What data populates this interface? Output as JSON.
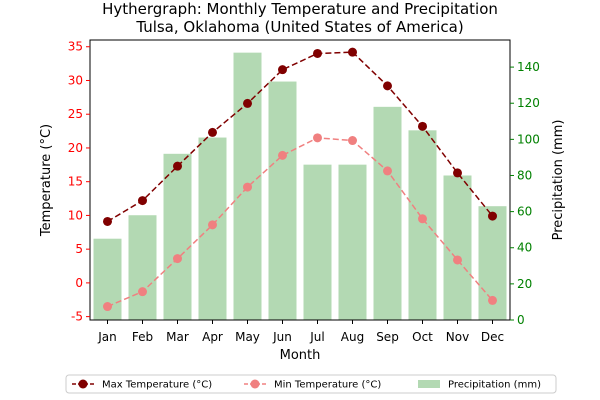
{
  "chart_data": {
    "type": "bar+line",
    "title": "Hythergraph: Monthly Temperature and Precipitation",
    "subtitle": "Tulsa, Oklahoma (United States of America)",
    "xlabel": "Month",
    "ylabel_left": "Temperature (°C)",
    "ylabel_right": "Precipitation (mm)",
    "categories": [
      "Jan",
      "Feb",
      "Mar",
      "Apr",
      "May",
      "Jun",
      "Jul",
      "Aug",
      "Sep",
      "Oct",
      "Nov",
      "Dec"
    ],
    "ylim_left": [
      -5.5,
      36
    ],
    "ylim_right": [
      0,
      155
    ],
    "yticks_left": [
      -5,
      0,
      5,
      10,
      15,
      20,
      25,
      30,
      35
    ],
    "yticks_right": [
      0,
      20,
      40,
      60,
      80,
      100,
      120,
      140
    ],
    "series": [
      {
        "name": "Max Temperature (°C)",
        "kind": "line",
        "axis": "left",
        "color": "#800000",
        "style": "dashed",
        "values": [
          9.1,
          12.2,
          17.3,
          22.3,
          26.6,
          31.6,
          34.0,
          34.2,
          29.2,
          23.2,
          16.3,
          9.9
        ]
      },
      {
        "name": "Min Temperature (°C)",
        "kind": "line",
        "axis": "left",
        "color": "#f08080",
        "style": "dashed",
        "values": [
          -3.5,
          -1.3,
          3.6,
          8.6,
          14.2,
          18.9,
          21.5,
          21.1,
          16.6,
          9.5,
          3.4,
          -2.6
        ]
      },
      {
        "name": "Precipitation (mm)",
        "kind": "bar",
        "axis": "right",
        "color": "#b3d9b3",
        "values": [
          45,
          58,
          92,
          101,
          148,
          132,
          86,
          86,
          118,
          105,
          80,
          63
        ]
      }
    ],
    "colors": {
      "left_axis": "#ff0000",
      "right_axis": "#008000"
    },
    "legend_position": "bottom-center",
    "grid": false
  }
}
